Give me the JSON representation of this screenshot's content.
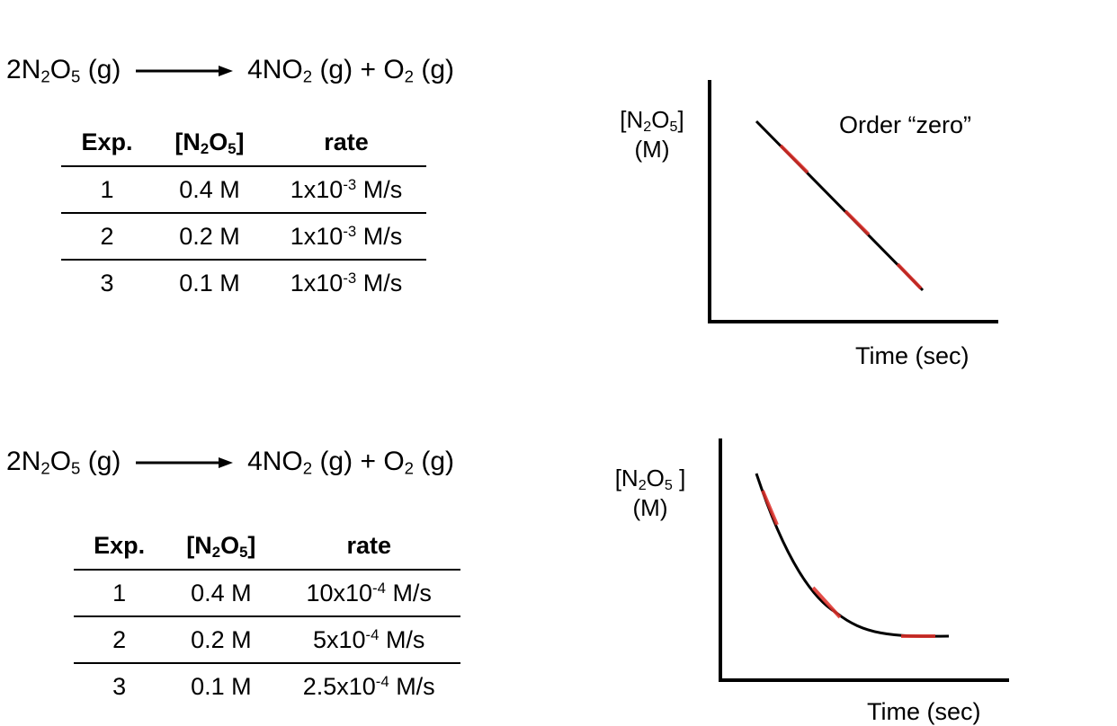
{
  "panels": [
    {
      "equation": {
        "reactant": {
          "coef": "2",
          "a": "N",
          "sub1": "2",
          "b": "O",
          "sub2": "5",
          "state": " (g)"
        },
        "product1": {
          "text": "4NO",
          "sub": "2",
          "state": " (g) + "
        },
        "product2": {
          "text": "O",
          "sub": "2",
          "state": " (g)"
        }
      },
      "table": {
        "headers": {
          "exp": "Exp.",
          "conc_open": "[N",
          "conc_sub1": "2",
          "conc_mid": "O",
          "conc_sub2": "5",
          "conc_close": "]",
          "rate": "rate"
        },
        "rows": [
          {
            "exp": "1",
            "conc": "0.4 M",
            "rate_base": "1x10",
            "rate_exp": "-3",
            "rate_unit": " M/s"
          },
          {
            "exp": "2",
            "conc": "0.2 M",
            "rate_base": "1x10",
            "rate_exp": "-3",
            "rate_unit": " M/s"
          },
          {
            "exp": "3",
            "conc": "0.1 M",
            "rate_base": "1x10",
            "rate_exp": "-3",
            "rate_unit": " M/s"
          }
        ]
      },
      "graph": {
        "ylabel_open": "[N",
        "ylabel_sub1": "2",
        "ylabel_mid": "O",
        "ylabel_sub2": "5",
        "ylabel_close": "]",
        "ylabel_unit": "(M)",
        "xlabel": "Time (sec)",
        "annotation": "Order “zero”"
      }
    },
    {
      "equation": {
        "reactant": {
          "coef": "2",
          "a": "N",
          "sub1": "2",
          "b": "O",
          "sub2": "5",
          "state": " (g)"
        },
        "product1": {
          "text": "4NO",
          "sub": "2",
          "state": " (g) + "
        },
        "product2": {
          "text": "O",
          "sub": "2",
          "state": " (g)"
        }
      },
      "table": {
        "headers": {
          "exp": "Exp.",
          "conc_open": "[N",
          "conc_sub1": "2",
          "conc_mid": "O",
          "conc_sub2": "5",
          "conc_close": "]",
          "rate": "rate"
        },
        "rows": [
          {
            "exp": "1",
            "conc": "0.4 M",
            "rate_base": "10x10",
            "rate_exp": "-4",
            "rate_unit": " M/s"
          },
          {
            "exp": "2",
            "conc": "0.2 M",
            "rate_base": "5x10",
            "rate_exp": "-4",
            "rate_unit": " M/s"
          },
          {
            "exp": "3",
            "conc": "0.1 M",
            "rate_base": "2.5x10",
            "rate_exp": "-4",
            "rate_unit": " M/s"
          }
        ]
      },
      "graph": {
        "ylabel_open": "[N",
        "ylabel_sub1": "2",
        "ylabel_mid": "O",
        "ylabel_sub2": "5",
        "ylabel_close": " ]",
        "ylabel_unit": "(M)",
        "xlabel": "Time (sec)"
      }
    }
  ],
  "colors": {
    "line": "#000000",
    "tangent": "#e0302a"
  }
}
